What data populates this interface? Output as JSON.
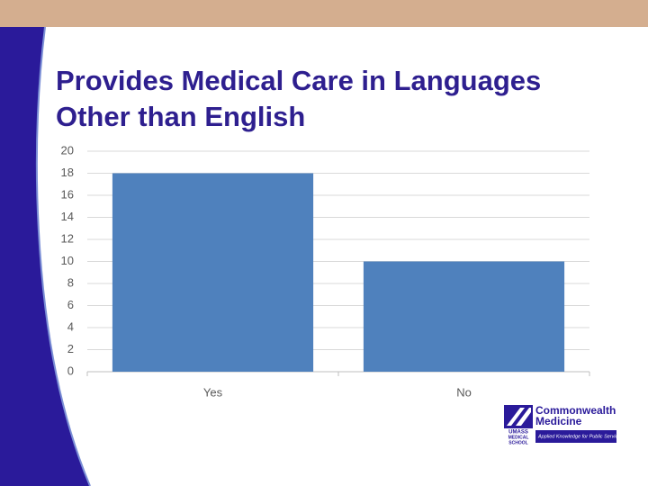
{
  "chart_data": {
    "type": "bar",
    "title": "Provides Medical Care in Languages Other than English",
    "categories": [
      "Yes",
      "No"
    ],
    "values": [
      18,
      10
    ],
    "color": "#4f81bd",
    "ylim": [
      0,
      20
    ],
    "yticks": [
      0,
      2,
      4,
      6,
      8,
      10,
      12,
      14,
      16,
      18,
      20
    ],
    "grid": true
  },
  "logo": {
    "name": [
      "Commonwealth",
      "Medicine"
    ],
    "school": [
      "UMASS",
      "MEDICAL",
      "SCHOOL"
    ],
    "tagline": "Applied Knowledge for Public Service"
  }
}
